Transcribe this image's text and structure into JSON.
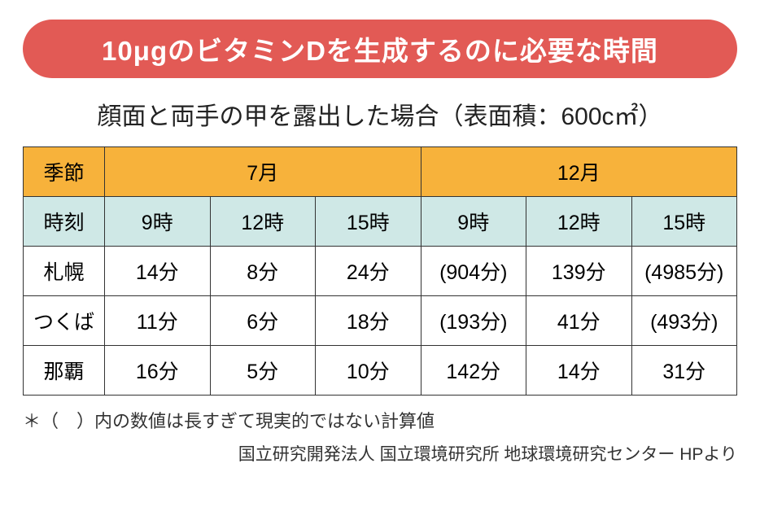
{
  "title": "10μgのビタミンDを生成するのに必要な時間",
  "subtitle": "顔面と両手の甲を露出した場合（表面積：600c㎡）",
  "table": {
    "columns": {
      "season_label": "季節",
      "time_label": "時刻",
      "months": [
        "7月",
        "12月"
      ],
      "times": [
        "9時",
        "12時",
        "15時",
        "9時",
        "12時",
        "15時"
      ]
    },
    "rows": [
      {
        "city": "札幌",
        "values": [
          "14分",
          "8分",
          "24分",
          "(904分)",
          "139分",
          "(4985分)"
        ]
      },
      {
        "city": "つくば",
        "values": [
          "11分",
          "6分",
          "18分",
          "(193分)",
          "41分",
          "(493分)"
        ]
      },
      {
        "city": "那覇",
        "values": [
          "16分",
          "5分",
          "10分",
          "142分",
          "14分",
          "31分"
        ]
      }
    ]
  },
  "footnote": "＊（　）内の数値は長すぎて現実的ではない計算値",
  "source": "国立研究開発法人 国立環境研究所 地球環境研究センター HPより",
  "styling": {
    "title_bg": "#e25a55",
    "title_color": "#ffffff",
    "season_header_bg": "#f7b23b",
    "time_header_bg": "#cfe8e6",
    "border_color": "#333333",
    "body_bg": "#ffffff",
    "text_color": "#222222",
    "title_fontsize": 33,
    "subtitle_fontsize": 30,
    "cell_fontsize": 25,
    "footnote_fontsize": 22,
    "source_fontsize": 21
  }
}
